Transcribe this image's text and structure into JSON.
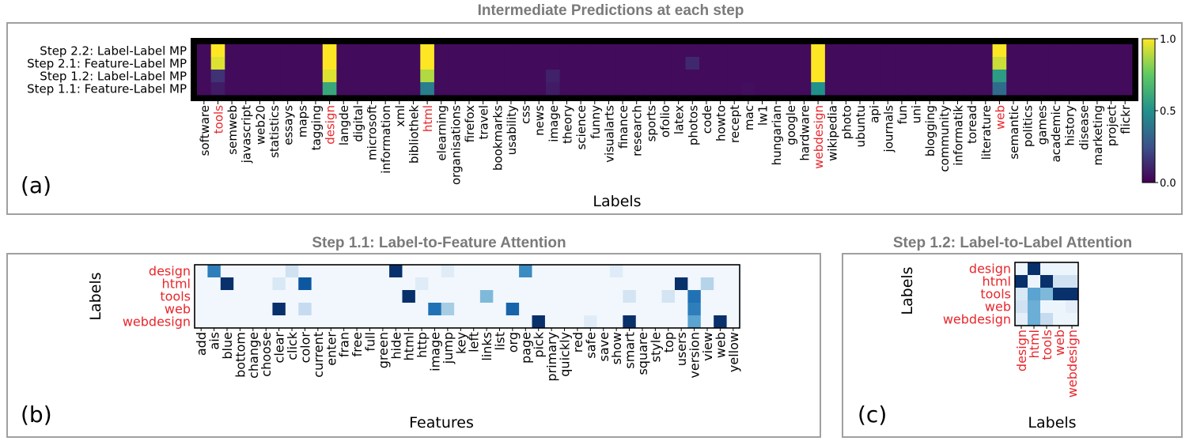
{
  "titles": {
    "a": "Intermediate Predictions at each step",
    "b": "Step 1.1: Label-to-Feature Attention",
    "c": "Step 1.2: Label-to-Label Attention"
  },
  "panel_labels": {
    "a": "(a)",
    "b": "(b)",
    "c": "(c)"
  },
  "chart_data": [
    {
      "type": "heatmap",
      "title": "Intermediate Predictions at each step",
      "xlabel": "Labels",
      "ylabel": "",
      "colormap": "viridis",
      "colorbar": {
        "range": [
          0.0,
          1.0
        ],
        "ticks": [
          "0.0",
          "0.5",
          "1.0"
        ]
      },
      "highlight_color": "#e8262b",
      "rows": [
        "Step 2.2: Label-Label MP",
        "Step 2.1: Feature-Label MP",
        "Step 1.2: Label-Label MP",
        "Step 1.1: Feature-Label MP"
      ],
      "columns": [
        "software",
        "tools",
        "semweb",
        "javascript",
        "web20",
        "statistics",
        "essays",
        "maps",
        "tagging",
        "design",
        "langde",
        "digital",
        "microsoft",
        "information",
        "xml",
        "bibliothek",
        "html",
        "elearning",
        "organisations",
        "firefox",
        "travel",
        "bookmarks",
        "usability",
        "css",
        "news",
        "image",
        "theory",
        "science",
        "funny",
        "visualarts",
        "finance",
        "research",
        "sports",
        "ofolio",
        "latex",
        "photos",
        "code",
        "howto",
        "recept",
        "mac",
        "lw1",
        "hungarian",
        "google",
        "hardware",
        "webdesign",
        "wikipedia",
        "photo",
        "ubuntu",
        "api",
        "journals",
        "fun",
        "uni",
        "blogging",
        "community",
        "informatik",
        "toread",
        "literature",
        "web",
        "semantic",
        "politics",
        "games",
        "academic",
        "history",
        "disease",
        "marketing",
        "project",
        "flickr"
      ],
      "highlighted_columns": [
        "tools",
        "design",
        "html",
        "webdesign",
        "web"
      ],
      "cells": [
        {
          "row": 0,
          "col": "tools",
          "value": 1.0
        },
        {
          "row": 1,
          "col": "tools",
          "value": 0.95
        },
        {
          "row": 2,
          "col": "tools",
          "value": 0.15
        },
        {
          "row": 3,
          "col": "tools",
          "value": 0.08
        },
        {
          "row": 0,
          "col": "design",
          "value": 1.0
        },
        {
          "row": 1,
          "col": "design",
          "value": 1.0
        },
        {
          "row": 2,
          "col": "design",
          "value": 0.95
        },
        {
          "row": 3,
          "col": "design",
          "value": 0.6
        },
        {
          "row": 0,
          "col": "html",
          "value": 1.0
        },
        {
          "row": 1,
          "col": "html",
          "value": 1.0
        },
        {
          "row": 2,
          "col": "html",
          "value": 0.88
        },
        {
          "row": 3,
          "col": "html",
          "value": 0.42
        },
        {
          "row": 0,
          "col": "webdesign",
          "value": 1.0
        },
        {
          "row": 1,
          "col": "webdesign",
          "value": 1.0
        },
        {
          "row": 2,
          "col": "webdesign",
          "value": 1.0
        },
        {
          "row": 3,
          "col": "webdesign",
          "value": 0.5
        },
        {
          "row": 0,
          "col": "web",
          "value": 1.0
        },
        {
          "row": 1,
          "col": "web",
          "value": 0.92
        },
        {
          "row": 2,
          "col": "web",
          "value": 0.55
        },
        {
          "row": 3,
          "col": "web",
          "value": 0.35
        },
        {
          "row": 1,
          "col": "photos",
          "value": 0.12
        },
        {
          "row": 2,
          "col": "image",
          "value": 0.1
        },
        {
          "row": 3,
          "col": "image",
          "value": 0.08
        },
        {
          "row": 3,
          "col": "mac",
          "value": 0.04
        }
      ]
    },
    {
      "type": "heatmap",
      "title": "Step 1.1: Label-to-Feature Attention",
      "xlabel": "Features",
      "ylabel": "Labels",
      "colormap": "Blues",
      "rows": [
        "design",
        "html",
        "tools",
        "web",
        "webdesign"
      ],
      "columns": [
        "add",
        "ais",
        "blue",
        "bottom",
        "change",
        "choose",
        "clear",
        "click",
        "color",
        "current",
        "enter",
        "fran",
        "free",
        "full",
        "green",
        "hide",
        "html",
        "http",
        "image",
        "jump",
        "key",
        "left",
        "links",
        "list",
        "org",
        "page",
        "pick",
        "primary",
        "quickly",
        "red",
        "safe",
        "save",
        "show",
        "smart",
        "square",
        "style",
        "top",
        "users",
        "version",
        "view",
        "web",
        "yellow"
      ],
      "cells": [
        {
          "row": "design",
          "col": "ais",
          "value": 0.7
        },
        {
          "row": "design",
          "col": "hide",
          "value": 1.0
        },
        {
          "row": "design",
          "col": "page",
          "value": 0.65
        },
        {
          "row": "design",
          "col": "click",
          "value": 0.2
        },
        {
          "row": "design",
          "col": "jump",
          "value": 0.12
        },
        {
          "row": "design",
          "col": "show",
          "value": 0.12
        },
        {
          "row": "html",
          "col": "blue",
          "value": 1.0
        },
        {
          "row": "html",
          "col": "color",
          "value": 0.85
        },
        {
          "row": "html",
          "col": "clear",
          "value": 0.15
        },
        {
          "row": "html",
          "col": "users",
          "value": 1.0
        },
        {
          "row": "html",
          "col": "view",
          "value": 0.3
        },
        {
          "row": "html",
          "col": "http",
          "value": 0.12
        },
        {
          "row": "tools",
          "col": "html",
          "value": 1.0
        },
        {
          "row": "tools",
          "col": "links",
          "value": 0.45
        },
        {
          "row": "tools",
          "col": "version",
          "value": 0.75
        },
        {
          "row": "tools",
          "col": "smart",
          "value": 0.18
        },
        {
          "row": "tools",
          "col": "top",
          "value": 0.18
        },
        {
          "row": "web",
          "col": "clear",
          "value": 1.0
        },
        {
          "row": "web",
          "col": "color",
          "value": 0.25
        },
        {
          "row": "web",
          "col": "image",
          "value": 0.75
        },
        {
          "row": "web",
          "col": "jump",
          "value": 0.35
        },
        {
          "row": "web",
          "col": "org",
          "value": 0.8
        },
        {
          "row": "web",
          "col": "version",
          "value": 0.7
        },
        {
          "row": "webdesign",
          "col": "pick",
          "value": 1.0
        },
        {
          "row": "webdesign",
          "col": "smart",
          "value": 1.0
        },
        {
          "row": "webdesign",
          "col": "web",
          "value": 1.0
        },
        {
          "row": "webdesign",
          "col": "version",
          "value": 0.55
        },
        {
          "row": "webdesign",
          "col": "safe",
          "value": 0.12
        }
      ]
    },
    {
      "type": "heatmap",
      "title": "Step 1.2: Label-to-Label Attention",
      "xlabel": "Labels",
      "ylabel": "Labels",
      "colormap": "Blues",
      "rows": [
        "design",
        "html",
        "tools",
        "web",
        "webdesign"
      ],
      "columns": [
        "design",
        "html",
        "tools",
        "web",
        "webdesign"
      ],
      "matrix": [
        [
          0.05,
          1.0,
          0.05,
          0.05,
          0.05
        ],
        [
          1.0,
          0.05,
          1.0,
          0.2,
          0.2
        ],
        [
          0.15,
          0.55,
          0.45,
          1.0,
          1.0
        ],
        [
          0.2,
          0.5,
          0.05,
          0.05,
          0.1
        ],
        [
          0.1,
          0.5,
          0.25,
          0.05,
          0.05
        ]
      ]
    }
  ]
}
